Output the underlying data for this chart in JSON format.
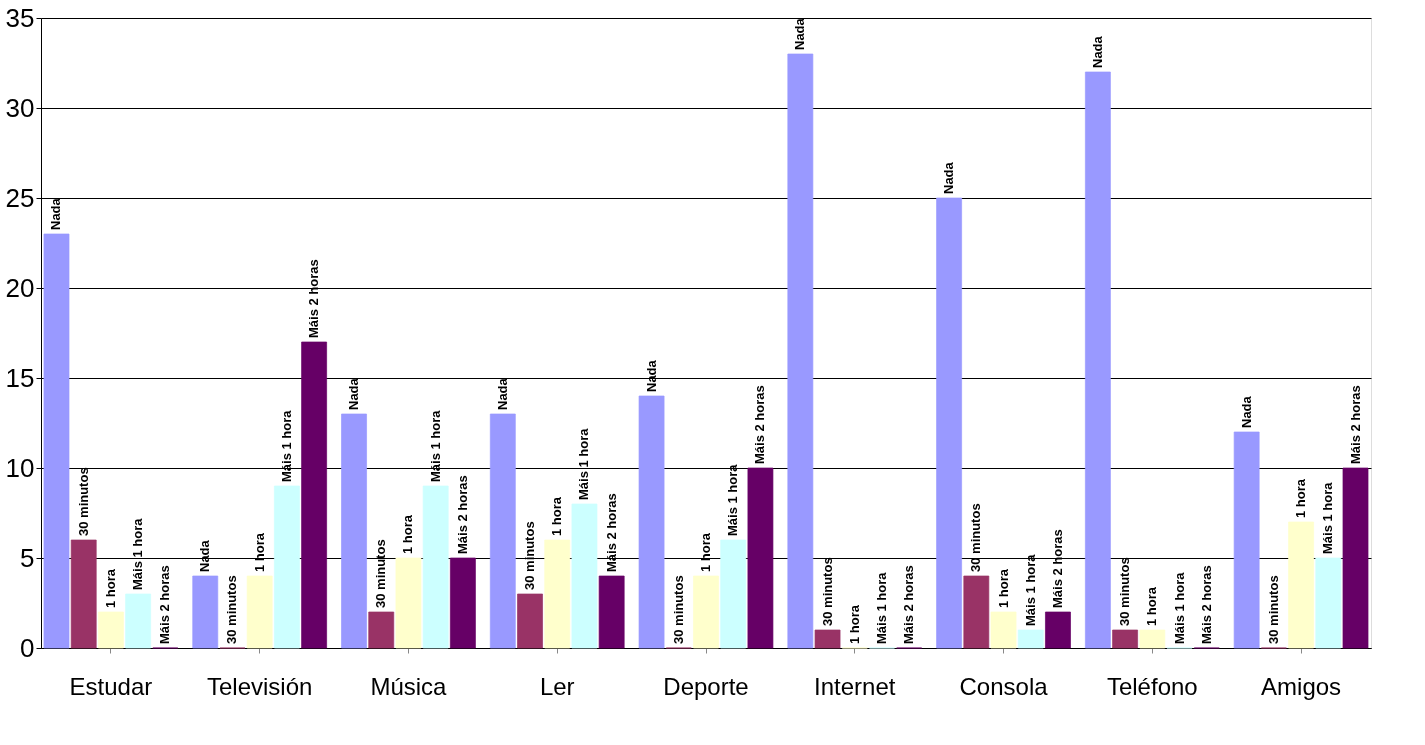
{
  "chart_data": {
    "type": "bar",
    "categories": [
      "Estudar",
      "Televisión",
      "Música",
      "Ler",
      "Deporte",
      "Internet",
      "Consola",
      "Teléfono",
      "Amigos"
    ],
    "series": [
      {
        "name": "Nada",
        "color": "#9999ff",
        "values": [
          23,
          4,
          13,
          13,
          14,
          33,
          25,
          32,
          12
        ]
      },
      {
        "name": "30 minutos",
        "color": "#993366",
        "values": [
          6,
          0,
          2,
          3,
          0,
          1,
          4,
          1,
          0
        ]
      },
      {
        "name": "1 hora",
        "color": "#ffffcc",
        "values": [
          2,
          4,
          5,
          6,
          4,
          0,
          2,
          1,
          7
        ]
      },
      {
        "name": "Máis 1 hora",
        "color": "#ccffff",
        "values": [
          3,
          9,
          9,
          8,
          6,
          0,
          1,
          0,
          5
        ]
      },
      {
        "name": "Máis 2 horas",
        "color": "#660066",
        "values": [
          0,
          17,
          5,
          4,
          10,
          0,
          2,
          0,
          10
        ]
      }
    ],
    "ylim": [
      0,
      35
    ],
    "yticks": [
      0,
      5,
      10,
      15,
      20,
      25,
      30,
      35
    ],
    "grid": "y",
    "legend": false
  }
}
